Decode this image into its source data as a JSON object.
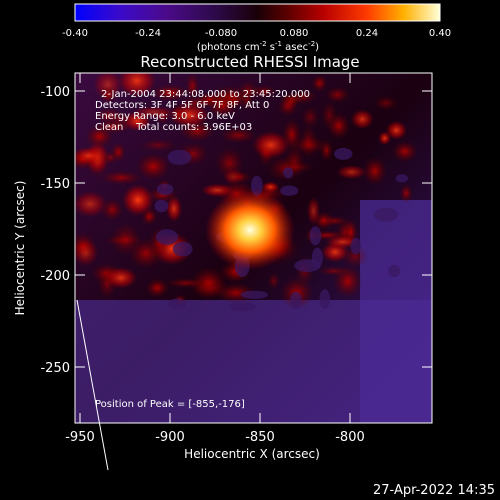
{
  "colorbar": {
    "ticks": [
      "-0.40",
      "-0.24",
      "-0.080",
      "0.080",
      "0.24",
      "0.40"
    ],
    "unit_main": "(photons cm",
    "unit_exp1": "-2",
    "unit_mid": " s",
    "unit_exp2": "-1",
    "unit_mid2": " asec",
    "unit_exp3": "-2",
    "unit_end": ")"
  },
  "plot": {
    "title": "Reconstructed RHESSI Image",
    "xlabel": "Heliocentric X (arcsec)",
    "ylabel": "Heliocentric Y (arcsec)",
    "x_ticks": [
      "-950",
      "-900",
      "-850",
      "-800"
    ],
    "y_ticks": [
      "-100",
      "-150",
      "-200",
      "-250"
    ],
    "info_lines": [
      "2-Jan-2004 23:44:08.000 to 23:45:20.000",
      "Detectors: 3F 4F 5F 6F 7F 8F, Att 0",
      "Energy Range: 3.0 - 6.0 keV",
      "Clean    Total counts: 3.96E+03"
    ],
    "peak_label": "Position of Peak = [-855,-176]"
  },
  "chart_data": {
    "type": "heatmap",
    "title": "Reconstructed RHESSI Image",
    "xlabel": "Heliocentric X (arcsec)",
    "ylabel": "Heliocentric Y (arcsec)",
    "xlim": [
      -955,
      -765
    ],
    "ylim": [
      -283,
      -92
    ],
    "peak": {
      "x": -855,
      "y": -176,
      "label": "Position of Peak = [-855,-176]"
    },
    "colorbar_range": [
      -0.4,
      0.4
    ],
    "colorbar_unit": "photons cm^-2 s^-1 asec^-2"
  },
  "footer": {
    "timestamp": "27-Apr-2022 14:35"
  }
}
